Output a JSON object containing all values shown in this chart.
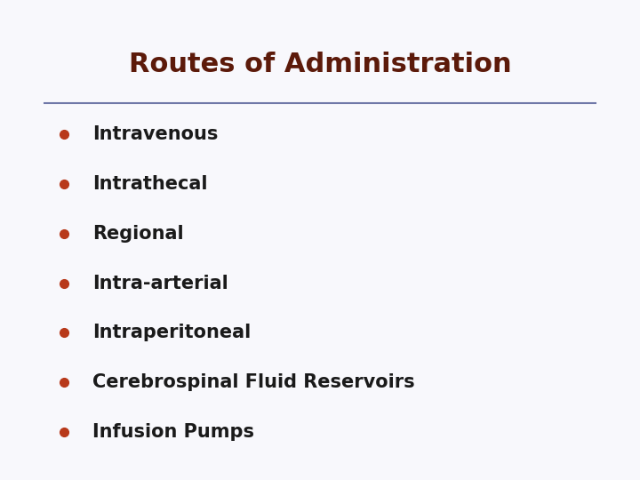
{
  "title": "Routes of Administration",
  "title_color": "#5C1A0A",
  "title_fontsize": 22,
  "title_fontweight": "bold",
  "bullet_items": [
    "Intravenous",
    "Intrathecal",
    "Regional",
    "Intra-arterial",
    "Intraperitoneal",
    "Cerebrospinal Fluid Reservoirs",
    "Infusion Pumps"
  ],
  "bullet_color": "#B8391A",
  "text_color": "#1a1a1a",
  "text_fontsize": 15,
  "background_color": "#ebebf0",
  "border_color": "#7078a8",
  "line_color": "#7078a8",
  "box_facecolor": "#f8f8fc",
  "figsize": [
    7.2,
    5.4
  ],
  "dpi": 100
}
